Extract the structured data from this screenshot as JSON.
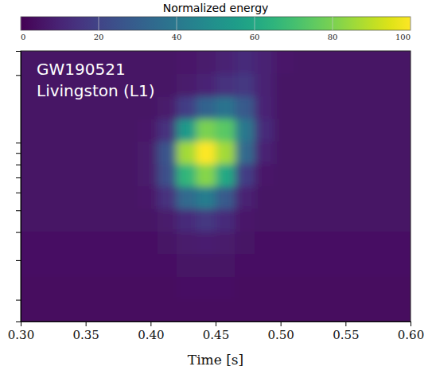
{
  "chart_data": {
    "type": "heatmap",
    "annotations": [
      "GW190521",
      "Livingston (L1)"
    ],
    "x_label": "Time [s]",
    "x": [
      0.3075,
      0.3225,
      0.3375,
      0.3525,
      0.3675,
      0.3825,
      0.3975,
      0.4125,
      0.4275,
      0.4425,
      0.4575,
      0.4725,
      0.4875,
      0.5025,
      0.5175,
      0.5325,
      0.5475,
      0.5625,
      0.5775,
      0.5925
    ],
    "y": [
      18,
      22.6,
      28.5,
      35.9,
      45.3,
      57,
      71.8,
      90.5,
      114,
      143.7,
      181,
      228.1
    ],
    "z": [
      [
        3,
        3,
        3,
        3,
        3,
        3,
        3,
        3,
        3,
        3,
        3,
        3,
        3,
        3,
        3,
        3,
        3,
        3,
        3,
        3
      ],
      [
        3,
        3,
        3,
        3,
        3,
        3,
        3,
        3,
        4,
        4,
        4,
        3,
        3,
        3,
        3,
        3,
        3,
        3,
        3,
        3
      ],
      [
        4,
        4,
        4,
        4,
        4,
        4,
        4,
        4,
        5,
        5,
        5,
        4,
        4,
        4,
        4,
        4,
        4,
        4,
        4,
        4
      ],
      [
        4,
        4,
        4,
        4,
        4,
        4,
        4,
        5,
        7,
        8,
        7,
        5,
        4,
        4,
        4,
        4,
        4,
        4,
        4,
        4
      ],
      [
        5,
        5,
        5,
        5,
        5,
        5,
        5,
        7,
        12,
        16,
        12,
        6,
        5,
        5,
        5,
        5,
        5,
        5,
        5,
        5
      ],
      [
        5,
        5,
        5,
        5,
        5,
        5,
        6,
        14,
        34,
        42,
        28,
        9,
        5,
        5,
        5,
        5,
        5,
        5,
        5,
        5
      ],
      [
        5,
        5,
        5,
        5,
        5,
        5,
        7,
        24,
        66,
        82,
        60,
        18,
        6,
        5,
        5,
        5,
        5,
        5,
        5,
        5
      ],
      [
        5,
        5,
        5,
        5,
        5,
        5,
        7,
        26,
        86,
        100,
        86,
        34,
        9,
        5,
        5,
        5,
        5,
        5,
        5,
        5
      ],
      [
        5,
        5,
        5,
        5,
        5,
        5,
        6,
        14,
        54,
        80,
        74,
        40,
        12,
        5,
        5,
        5,
        5,
        5,
        5,
        5
      ],
      [
        5,
        5,
        5,
        5,
        5,
        5,
        5,
        7,
        18,
        32,
        38,
        28,
        10,
        5,
        5,
        5,
        5,
        5,
        5,
        5
      ],
      [
        5,
        5,
        5,
        5,
        5,
        5,
        5,
        5,
        7,
        10,
        14,
        16,
        9,
        5,
        5,
        5,
        5,
        5,
        5,
        5
      ],
      [
        5,
        5,
        5,
        5,
        5,
        5,
        5,
        5,
        6,
        7,
        9,
        12,
        9,
        6,
        5,
        5,
        5,
        5,
        5,
        5
      ]
    ],
    "xlim": [
      0.3,
      0.6
    ],
    "xticks": [
      {
        "value": 0.3,
        "label": "0.30"
      },
      0.35,
      {
        "value": 0.4,
        "label": "0.40"
      },
      0.45,
      {
        "value": 0.5,
        "label": "0.50"
      },
      0.55,
      {
        "value": 0.6,
        "label": "0.60"
      }
    ],
    "ylim": [
      16,
      256
    ],
    "yticks": [
      20,
      30,
      40,
      50,
      60,
      70,
      80,
      90,
      100,
      200
    ],
    "log": "y",
    "tick_labels": "x",
    "colorbar": {
      "label": "Normalized energy",
      "lim": [
        0,
        100
      ],
      "ticks": [
        0,
        20,
        40,
        60,
        80,
        100
      ]
    }
  }
}
